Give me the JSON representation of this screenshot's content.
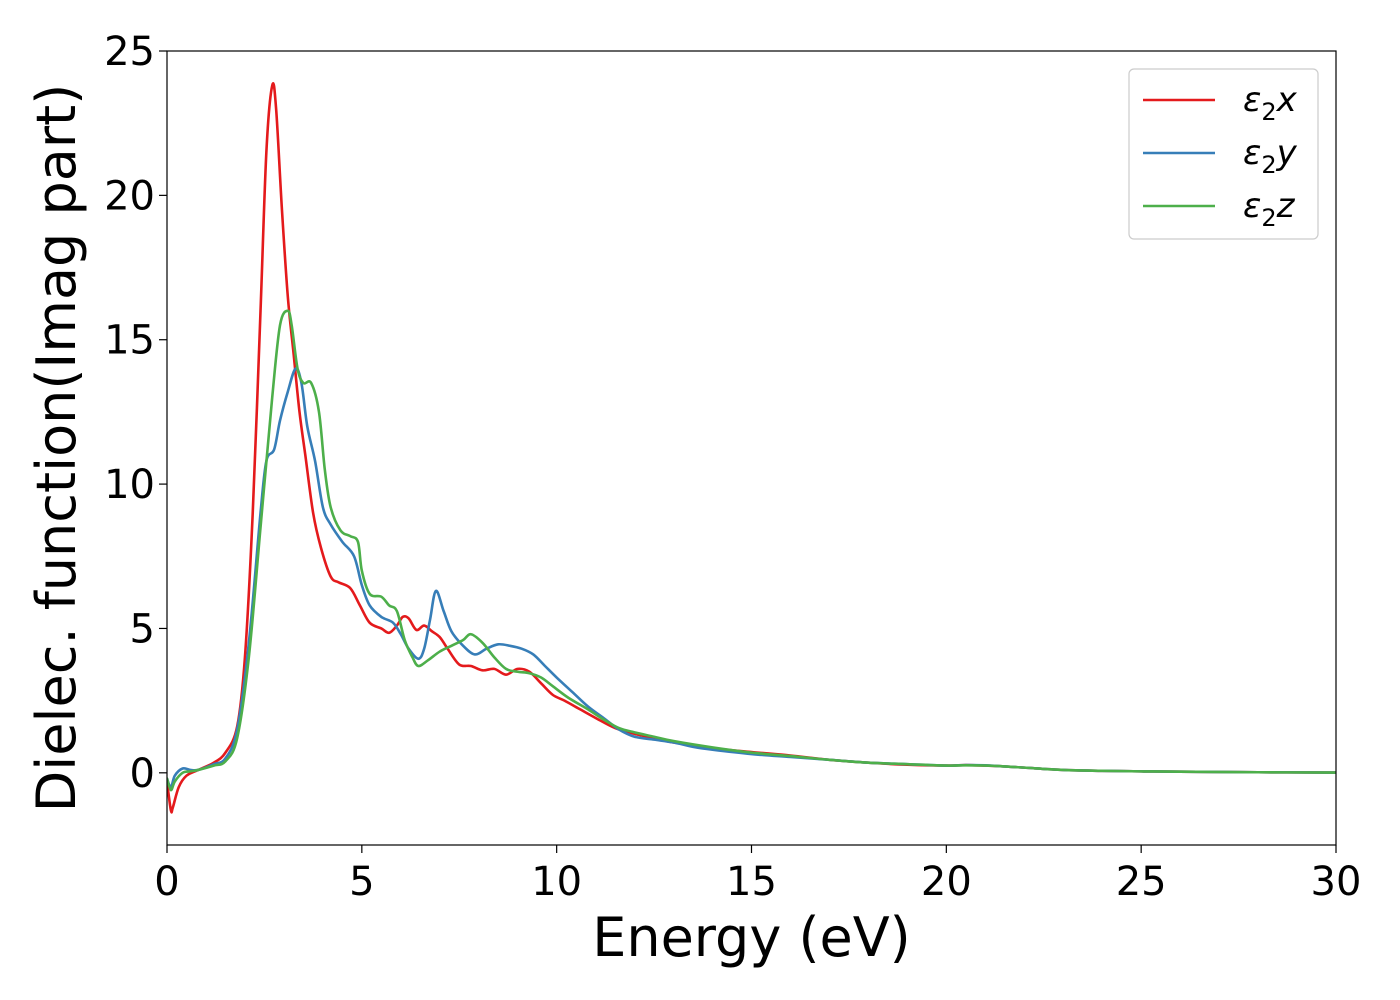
{
  "chart_data": {
    "type": "line",
    "xlabel": "Energy (eV)",
    "ylabel": "Dielec. function(Imag part)",
    "xlim": [
      0,
      30
    ],
    "ylim": [
      -2.5,
      25
    ],
    "xticks": [
      0,
      5,
      10,
      15,
      20,
      25,
      30
    ],
    "yticks": [
      0,
      5,
      10,
      15,
      20,
      25
    ],
    "grid": false,
    "legend": "top-right",
    "series": [
      {
        "name": "ε2x",
        "legend_base": "ε",
        "legend_sub": "2",
        "legend_tail": "x",
        "color": "#e41a1c",
        "x": [
          0,
          0.1,
          0.15,
          0.3,
          0.5,
          0.8,
          1.2,
          1.5,
          1.8,
          2.0,
          2.2,
          2.4,
          2.55,
          2.7,
          2.8,
          2.95,
          3.1,
          3.25,
          3.4,
          3.55,
          3.75,
          3.95,
          4.2,
          4.4,
          4.7,
          4.95,
          5.2,
          5.5,
          5.7,
          5.9,
          6.05,
          6.2,
          6.4,
          6.6,
          6.8,
          7.0,
          7.2,
          7.5,
          7.8,
          8.1,
          8.4,
          8.7,
          9.0,
          9.3,
          9.6,
          9.9,
          10.2,
          10.6,
          11.0,
          11.5,
          12.0,
          12.5,
          13.0,
          13.5,
          14.0,
          15.0,
          16.0,
          17.0,
          18.0,
          19.0,
          20.0,
          20.5,
          21.0,
          21.5,
          22.0,
          23.0,
          24.0,
          25.0,
          26.0,
          28.0,
          30.0
        ],
        "y": [
          -0.3,
          -1.3,
          -1.2,
          -0.5,
          -0.1,
          0.1,
          0.35,
          0.7,
          1.6,
          4.0,
          9.0,
          16.0,
          21.5,
          23.8,
          23.0,
          19.5,
          16.5,
          14.5,
          12.5,
          11.0,
          9.0,
          7.8,
          6.8,
          6.6,
          6.4,
          5.8,
          5.2,
          5.0,
          4.85,
          5.1,
          5.4,
          5.35,
          4.95,
          5.1,
          4.9,
          4.7,
          4.3,
          3.75,
          3.7,
          3.55,
          3.6,
          3.4,
          3.6,
          3.5,
          3.1,
          2.7,
          2.5,
          2.2,
          1.9,
          1.55,
          1.35,
          1.2,
          1.05,
          0.95,
          0.85,
          0.72,
          0.6,
          0.45,
          0.35,
          0.28,
          0.25,
          0.27,
          0.25,
          0.22,
          0.18,
          0.1,
          0.07,
          0.05,
          0.04,
          0.02,
          0.01
        ]
      },
      {
        "name": "ε2y",
        "legend_base": "ε",
        "legend_sub": "2",
        "legend_tail": "y",
        "color": "#377eb8",
        "x": [
          0,
          0.1,
          0.2,
          0.4,
          0.6,
          0.8,
          1.2,
          1.5,
          1.8,
          2.1,
          2.4,
          2.55,
          2.75,
          2.9,
          3.1,
          3.3,
          3.45,
          3.6,
          3.8,
          4.0,
          4.2,
          4.5,
          4.8,
          5.0,
          5.2,
          5.5,
          5.8,
          6.0,
          6.2,
          6.45,
          6.6,
          6.75,
          6.9,
          7.1,
          7.3,
          7.6,
          7.9,
          8.2,
          8.5,
          8.8,
          9.1,
          9.4,
          9.7,
          10.0,
          10.4,
          10.8,
          11.2,
          11.6,
          12.0,
          12.5,
          13.0,
          13.5,
          14.0,
          15.0,
          16.0,
          17.0,
          18.0,
          19.0,
          20.0,
          20.5,
          21.0,
          21.5,
          22.0,
          23.0,
          24.0,
          25.0,
          26.0,
          28.0,
          30.0
        ],
        "y": [
          -0.2,
          -0.5,
          -0.1,
          0.15,
          0.1,
          0.1,
          0.3,
          0.5,
          1.5,
          4.5,
          9.0,
          10.8,
          11.2,
          12.2,
          13.2,
          14.0,
          13.5,
          12.0,
          10.8,
          9.2,
          8.6,
          8.0,
          7.5,
          6.5,
          5.8,
          5.4,
          5.2,
          4.8,
          4.3,
          3.95,
          4.3,
          5.3,
          6.3,
          5.6,
          4.9,
          4.4,
          4.1,
          4.3,
          4.45,
          4.4,
          4.3,
          4.1,
          3.7,
          3.3,
          2.8,
          2.3,
          1.9,
          1.5,
          1.25,
          1.15,
          1.05,
          0.9,
          0.8,
          0.65,
          0.55,
          0.45,
          0.35,
          0.3,
          0.25,
          0.27,
          0.26,
          0.22,
          0.18,
          0.1,
          0.07,
          0.05,
          0.04,
          0.02,
          0.01
        ]
      },
      {
        "name": "ε2z",
        "legend_base": "ε",
        "legend_sub": "2",
        "legend_tail": "z",
        "color": "#4daf4a",
        "x": [
          0,
          0.1,
          0.2,
          0.4,
          0.6,
          0.8,
          1.2,
          1.5,
          1.8,
          2.1,
          2.4,
          2.7,
          2.9,
          3.1,
          3.2,
          3.35,
          3.5,
          3.7,
          3.9,
          4.05,
          4.2,
          4.45,
          4.7,
          4.9,
          5.0,
          5.2,
          5.5,
          5.7,
          5.9,
          6.1,
          6.3,
          6.45,
          6.7,
          7.0,
          7.3,
          7.6,
          7.8,
          8.1,
          8.4,
          8.7,
          9.0,
          9.3,
          9.6,
          9.9,
          10.3,
          10.8,
          11.2,
          11.6,
          12.0,
          12.5,
          13.0,
          14.0,
          15.0,
          16.0,
          17.0,
          18.0,
          19.0,
          20.0,
          20.5,
          21.0,
          21.5,
          22.0,
          23.0,
          24.0,
          25.0,
          26.0,
          28.0,
          30.0
        ],
        "y": [
          -0.2,
          -0.6,
          -0.3,
          0.0,
          0.05,
          0.1,
          0.25,
          0.4,
          1.2,
          4.0,
          8.5,
          13.0,
          15.5,
          16.0,
          15.5,
          14.0,
          13.5,
          13.5,
          12.5,
          10.5,
          9.2,
          8.4,
          8.2,
          8.0,
          7.0,
          6.2,
          6.1,
          5.8,
          5.6,
          4.6,
          4.0,
          3.7,
          3.9,
          4.2,
          4.4,
          4.6,
          4.8,
          4.5,
          4.0,
          3.6,
          3.5,
          3.45,
          3.3,
          3.0,
          2.6,
          2.2,
          1.85,
          1.55,
          1.4,
          1.25,
          1.1,
          0.88,
          0.7,
          0.58,
          0.45,
          0.35,
          0.3,
          0.25,
          0.26,
          0.25,
          0.22,
          0.18,
          0.1,
          0.07,
          0.05,
          0.04,
          0.02,
          0.01
        ]
      }
    ]
  }
}
